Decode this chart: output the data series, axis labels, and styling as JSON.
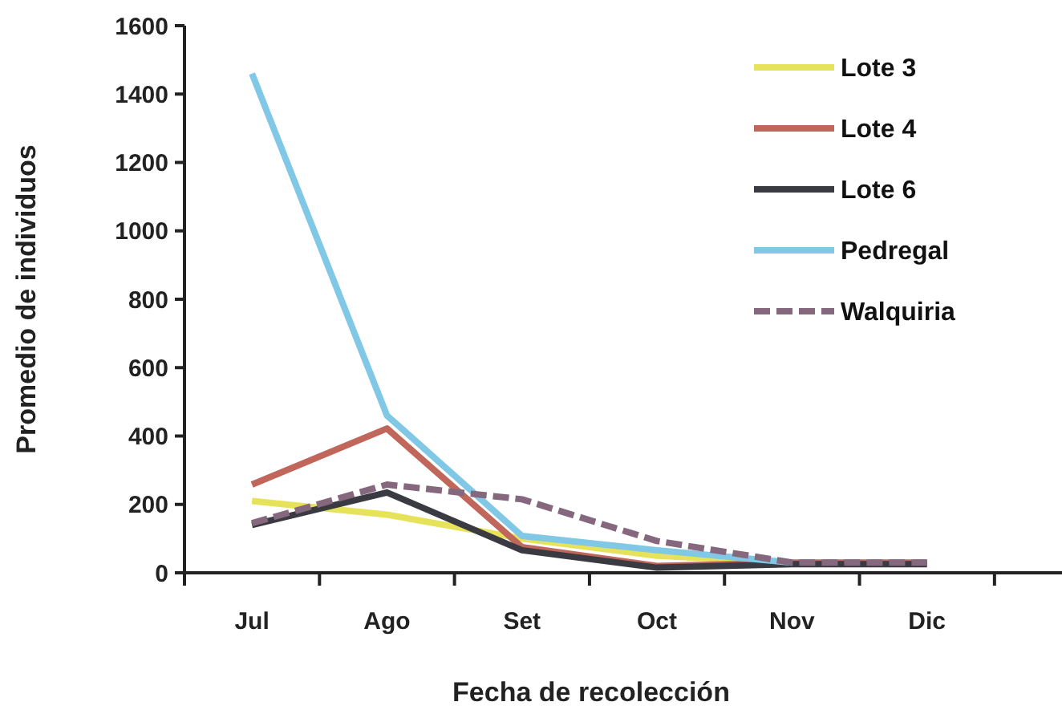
{
  "chart_data": {
    "type": "line",
    "xlabel": "Fecha de recolección",
    "ylabel": "Promedio de individuos",
    "categories": [
      "Jul",
      "Ago",
      "Set",
      "Oct",
      "Nov",
      "Dic"
    ],
    "series": [
      {
        "name": "Lote 3",
        "color": "#e6e35a",
        "values": [
          210,
          170,
          100,
          50,
          30,
          null
        ]
      },
      {
        "name": "Lote 4",
        "color": "#c0665a",
        "values": [
          258,
          422,
          75,
          20,
          30,
          30
        ]
      },
      {
        "name": "Lote 6",
        "color": "#3a3a42",
        "values": [
          140,
          235,
          66,
          15,
          25,
          25
        ]
      },
      {
        "name": "Pedregal",
        "color": "#80c8e6",
        "values": [
          1460,
          460,
          108,
          66,
          30,
          null
        ]
      },
      {
        "name": "Walquiria",
        "color": "#86687e",
        "line_style": "dashed",
        "values": [
          145,
          258,
          215,
          93,
          30,
          30
        ]
      }
    ],
    "ylim": [
      0,
      1600
    ],
    "yticks": [
      0,
      200,
      400,
      600,
      800,
      1000,
      1200,
      1400,
      1600
    ],
    "grid": false,
    "legend": "top right",
    "marker": "none"
  }
}
